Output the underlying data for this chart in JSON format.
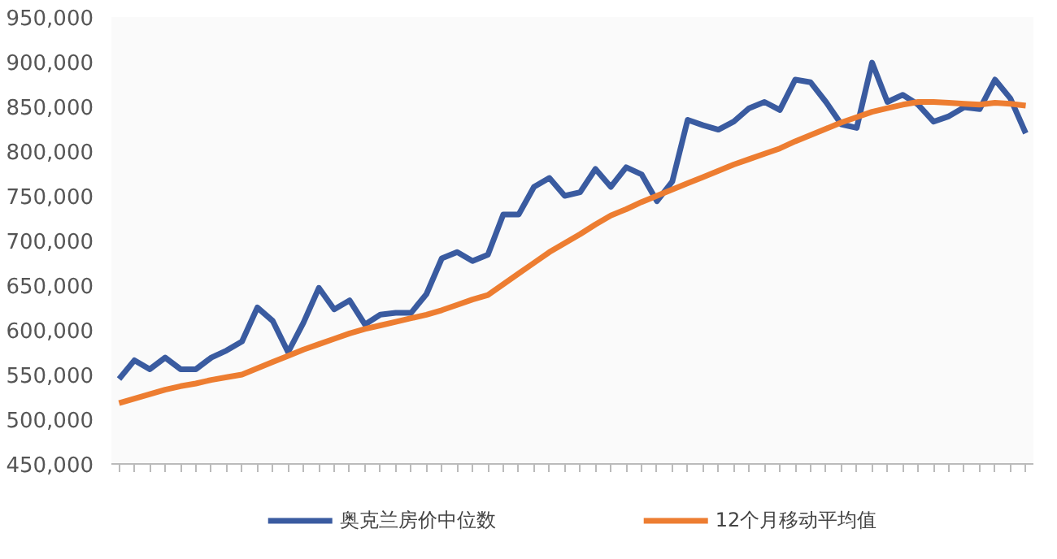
{
  "chart_data": {
    "type": "line",
    "categories": [
      null,
      null,
      null,
      null,
      null,
      null,
      null,
      null,
      null,
      null,
      null,
      null,
      null,
      null,
      null,
      null,
      null,
      null,
      null,
      null,
      null,
      null,
      null,
      null,
      null,
      null,
      null,
      null,
      null,
      null,
      null,
      null,
      null,
      null,
      null,
      null,
      null,
      null,
      null,
      null,
      null,
      null,
      null,
      null,
      null,
      null,
      null,
      null,
      null,
      null,
      null,
      null,
      null,
      null,
      null,
      null,
      null,
      null,
      null,
      null
    ],
    "series": [
      {
        "name": "奥克兰房价中位数",
        "color": "#3a5ba0",
        "values": [
          545000,
          566000,
          556000,
          569000,
          556000,
          556000,
          569000,
          577000,
          587000,
          625000,
          610000,
          575000,
          608000,
          647000,
          623000,
          633000,
          606000,
          617000,
          619000,
          619000,
          640000,
          680000,
          687000,
          677000,
          684000,
          729000,
          729000,
          760000,
          770000,
          750000,
          754000,
          780000,
          760000,
          782000,
          774000,
          744000,
          766000,
          835000,
          829000,
          824000,
          833000,
          848000,
          855000,
          846000,
          880000,
          877000,
          855000,
          830000,
          826000,
          899000,
          855000,
          863000,
          852000,
          833000,
          839000,
          849000,
          847000,
          880000,
          859000,
          820000
        ]
      },
      {
        "name": "12个月移动平均值",
        "color": "#ed7d31",
        "values": [
          518000,
          523000,
          528000,
          533000,
          537000,
          540000,
          544000,
          547000,
          550000,
          557000,
          564000,
          571000,
          578000,
          584000,
          590000,
          596000,
          601000,
          605000,
          609000,
          613000,
          617000,
          622000,
          628000,
          634000,
          639000,
          651000,
          663000,
          675000,
          687000,
          697000,
          707000,
          718000,
          728000,
          735000,
          743000,
          750000,
          757000,
          764000,
          771000,
          778000,
          785000,
          791000,
          797000,
          803000,
          811000,
          818000,
          825000,
          832000,
          838000,
          844000,
          848000,
          852000,
          855000,
          855000,
          854000,
          853000,
          852000,
          854000,
          853000,
          851000
        ]
      }
    ],
    "ylim": [
      450000,
      950000
    ],
    "yticks": [
      {
        "value": 450000,
        "label": "450,000"
      },
      {
        "value": 500000,
        "label": "500,000"
      },
      {
        "value": 550000,
        "label": "550,000"
      },
      {
        "value": 600000,
        "label": "600,000"
      },
      {
        "value": 650000,
        "label": "650,000"
      },
      {
        "value": 700000,
        "label": "700,000"
      },
      {
        "value": 750000,
        "label": "750,000"
      },
      {
        "value": 800000,
        "label": "800,000"
      },
      {
        "value": 850000,
        "label": "850,000"
      },
      {
        "value": 900000,
        "label": "900,000"
      },
      {
        "value": 950000,
        "label": "950,000"
      }
    ],
    "legend": "bottom",
    "grid": false,
    "marker": "none",
    "line_style": "solid"
  }
}
